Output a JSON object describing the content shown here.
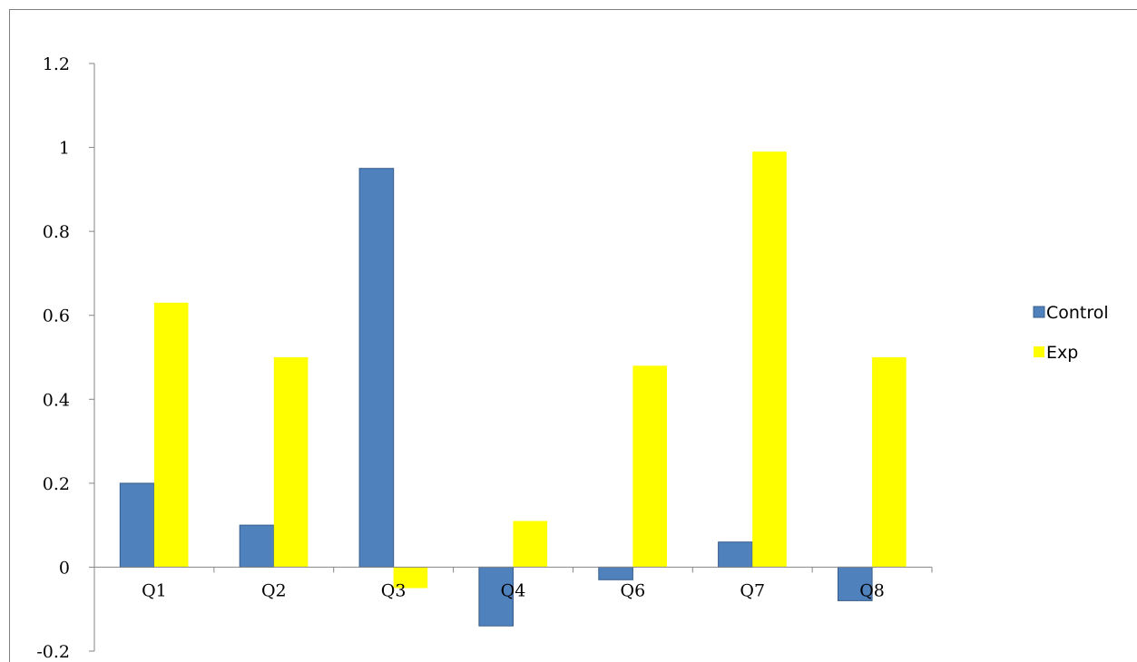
{
  "chart_data": {
    "type": "bar",
    "categories": [
      "Q1",
      "Q2",
      "Q3",
      "Q4",
      "Q6",
      "Q7",
      "Q8"
    ],
    "series": [
      {
        "name": "Control",
        "values": [
          0.2,
          0.1,
          0.95,
          -0.14,
          -0.03,
          0.06,
          -0.08
        ],
        "color": "#4f81bd"
      },
      {
        "name": "Exp",
        "values": [
          0.63,
          0.5,
          -0.05,
          0.11,
          0.48,
          0.99,
          0.5
        ],
        "color": "#ffff00"
      }
    ],
    "yticks": [
      "-0.2",
      "0",
      "0.2",
      "0.4",
      "0.6",
      "0.8",
      "1",
      "1.2"
    ],
    "ylim": [
      -0.2,
      1.2
    ],
    "legend_position": "right",
    "grid": false
  }
}
